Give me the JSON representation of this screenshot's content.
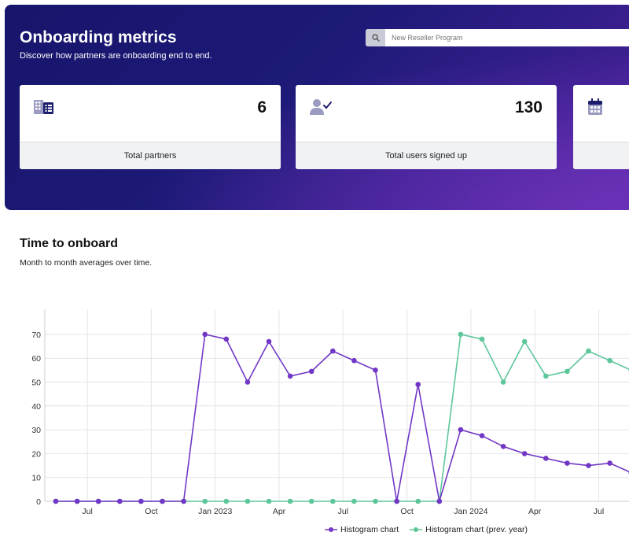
{
  "header": {
    "title": "Onboarding metrics",
    "subtitle": "Discover how partners are onboarding end to end.",
    "search_placeholder": "New Reseller Program",
    "search_icon": "search-icon"
  },
  "cards": [
    {
      "icon": "building-list-icon",
      "value": "6",
      "label": "Total partners"
    },
    {
      "icon": "user-check-icon",
      "value": "130",
      "label": "Total users signed up"
    },
    {
      "icon": "calendar-icon",
      "value": "",
      "label": ""
    }
  ],
  "section": {
    "title": "Time to onboard",
    "subtitle": "Month to month averages over time."
  },
  "colors": {
    "primary_series": "#7237c6",
    "secondary_series": "#5ec79a",
    "hero_start": "#17156b",
    "hero_end": "#5a2aa8"
  },
  "chart_data": {
    "type": "line",
    "x": [
      "2022-06",
      "2022-07",
      "2022-08",
      "2022-09",
      "2022-10",
      "2022-11",
      "2022-12",
      "2023-01",
      "2023-02",
      "2023-03",
      "2023-04",
      "2023-05",
      "2023-06",
      "2023-07",
      "2023-08",
      "2023-09",
      "2023-10",
      "2023-11",
      "2023-12",
      "2024-01",
      "2024-02",
      "2024-03",
      "2024-04",
      "2024-05",
      "2024-06",
      "2024-07",
      "2024-08",
      "2024-09"
    ],
    "x_tick_labels": [
      "Jul",
      "Oct",
      "Jan 2023",
      "Apr",
      "Jul",
      "Oct",
      "Jan 2024",
      "Apr",
      "Jul"
    ],
    "x_tick_months": [
      "2022-07",
      "2022-10",
      "2023-01",
      "2023-04",
      "2023-07",
      "2023-10",
      "2024-01",
      "2024-04",
      "2024-07"
    ],
    "ylim": [
      0,
      75
    ],
    "y_ticks": [
      0,
      10,
      20,
      30,
      40,
      50,
      60,
      70
    ],
    "grid": true,
    "legend_position": "bottom",
    "series": [
      {
        "name": "Histogram chart",
        "color": "#7237c6",
        "values": [
          0,
          0,
          0,
          0,
          0,
          0,
          0,
          70,
          68,
          50,
          67,
          52.5,
          54.5,
          63,
          59,
          55,
          0,
          49,
          0,
          30,
          27.5,
          23,
          20,
          18,
          16,
          15,
          16,
          12
        ]
      },
      {
        "name": "Histogram chart (prev. year)",
        "color": "#5ec79a",
        "values": [
          0,
          0,
          0,
          0,
          0,
          0,
          0,
          0,
          0,
          0,
          0,
          0,
          0,
          0,
          0,
          0,
          0,
          0,
          0,
          70,
          68,
          50,
          67,
          52.5,
          54.5,
          63,
          59,
          55
        ]
      }
    ]
  }
}
